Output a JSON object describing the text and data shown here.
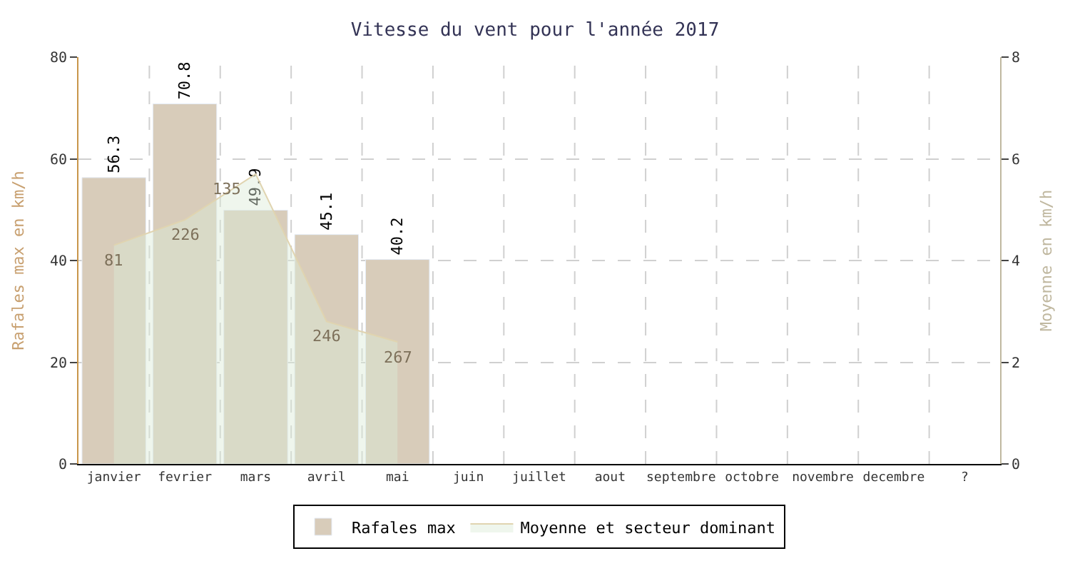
{
  "chart_data": {
    "type": "bar",
    "title": "Vitesse du vent pour l'année 2017",
    "ylabel": "Rafales max en km/h",
    "y2label": "Moyenne en km/h",
    "categories": [
      "janvier",
      "fevrier",
      "mars",
      "avril",
      "mai",
      "juin",
      "juillet",
      "aout",
      "septembre",
      "octobre",
      "novembre",
      "decembre",
      "?"
    ],
    "series": [
      {
        "name": "Rafales max",
        "color": "#d8ccba",
        "values": [
          56.3,
          70.8,
          49.9,
          45.1,
          40.2,
          null,
          null,
          null,
          null,
          null,
          null,
          null,
          null
        ],
        "value_labels": [
          "56.3",
          "70.8",
          "49.9",
          "45.1",
          "40.2",
          null,
          null,
          null,
          null,
          null,
          null,
          null,
          null
        ]
      },
      {
        "name": "Moyenne et secteur dominant",
        "type": "area",
        "axis": "y2",
        "color": "#e0d4b0",
        "values": [
          4.3,
          4.8,
          5.7,
          2.8,
          2.4,
          null,
          null,
          null,
          null,
          null,
          null,
          null,
          null
        ]
      }
    ],
    "annotations": [
      {
        "text": "81",
        "x": "janvier",
        "y": 43
      },
      {
        "text": "226",
        "x": "fevrier",
        "y": 48
      },
      {
        "text": "135",
        "x": "mars",
        "y": 57
      },
      {
        "text": "246",
        "x": "avril",
        "y": 28
      },
      {
        "text": "267",
        "x": "mai",
        "y": 24
      }
    ],
    "ylim": [
      0,
      80
    ],
    "yticks": [
      0,
      20,
      40,
      60,
      80
    ],
    "y2lim": [
      0,
      8
    ],
    "y2ticks": [
      0,
      2,
      4,
      6,
      8
    ],
    "grid": true,
    "legend": "bottom"
  }
}
